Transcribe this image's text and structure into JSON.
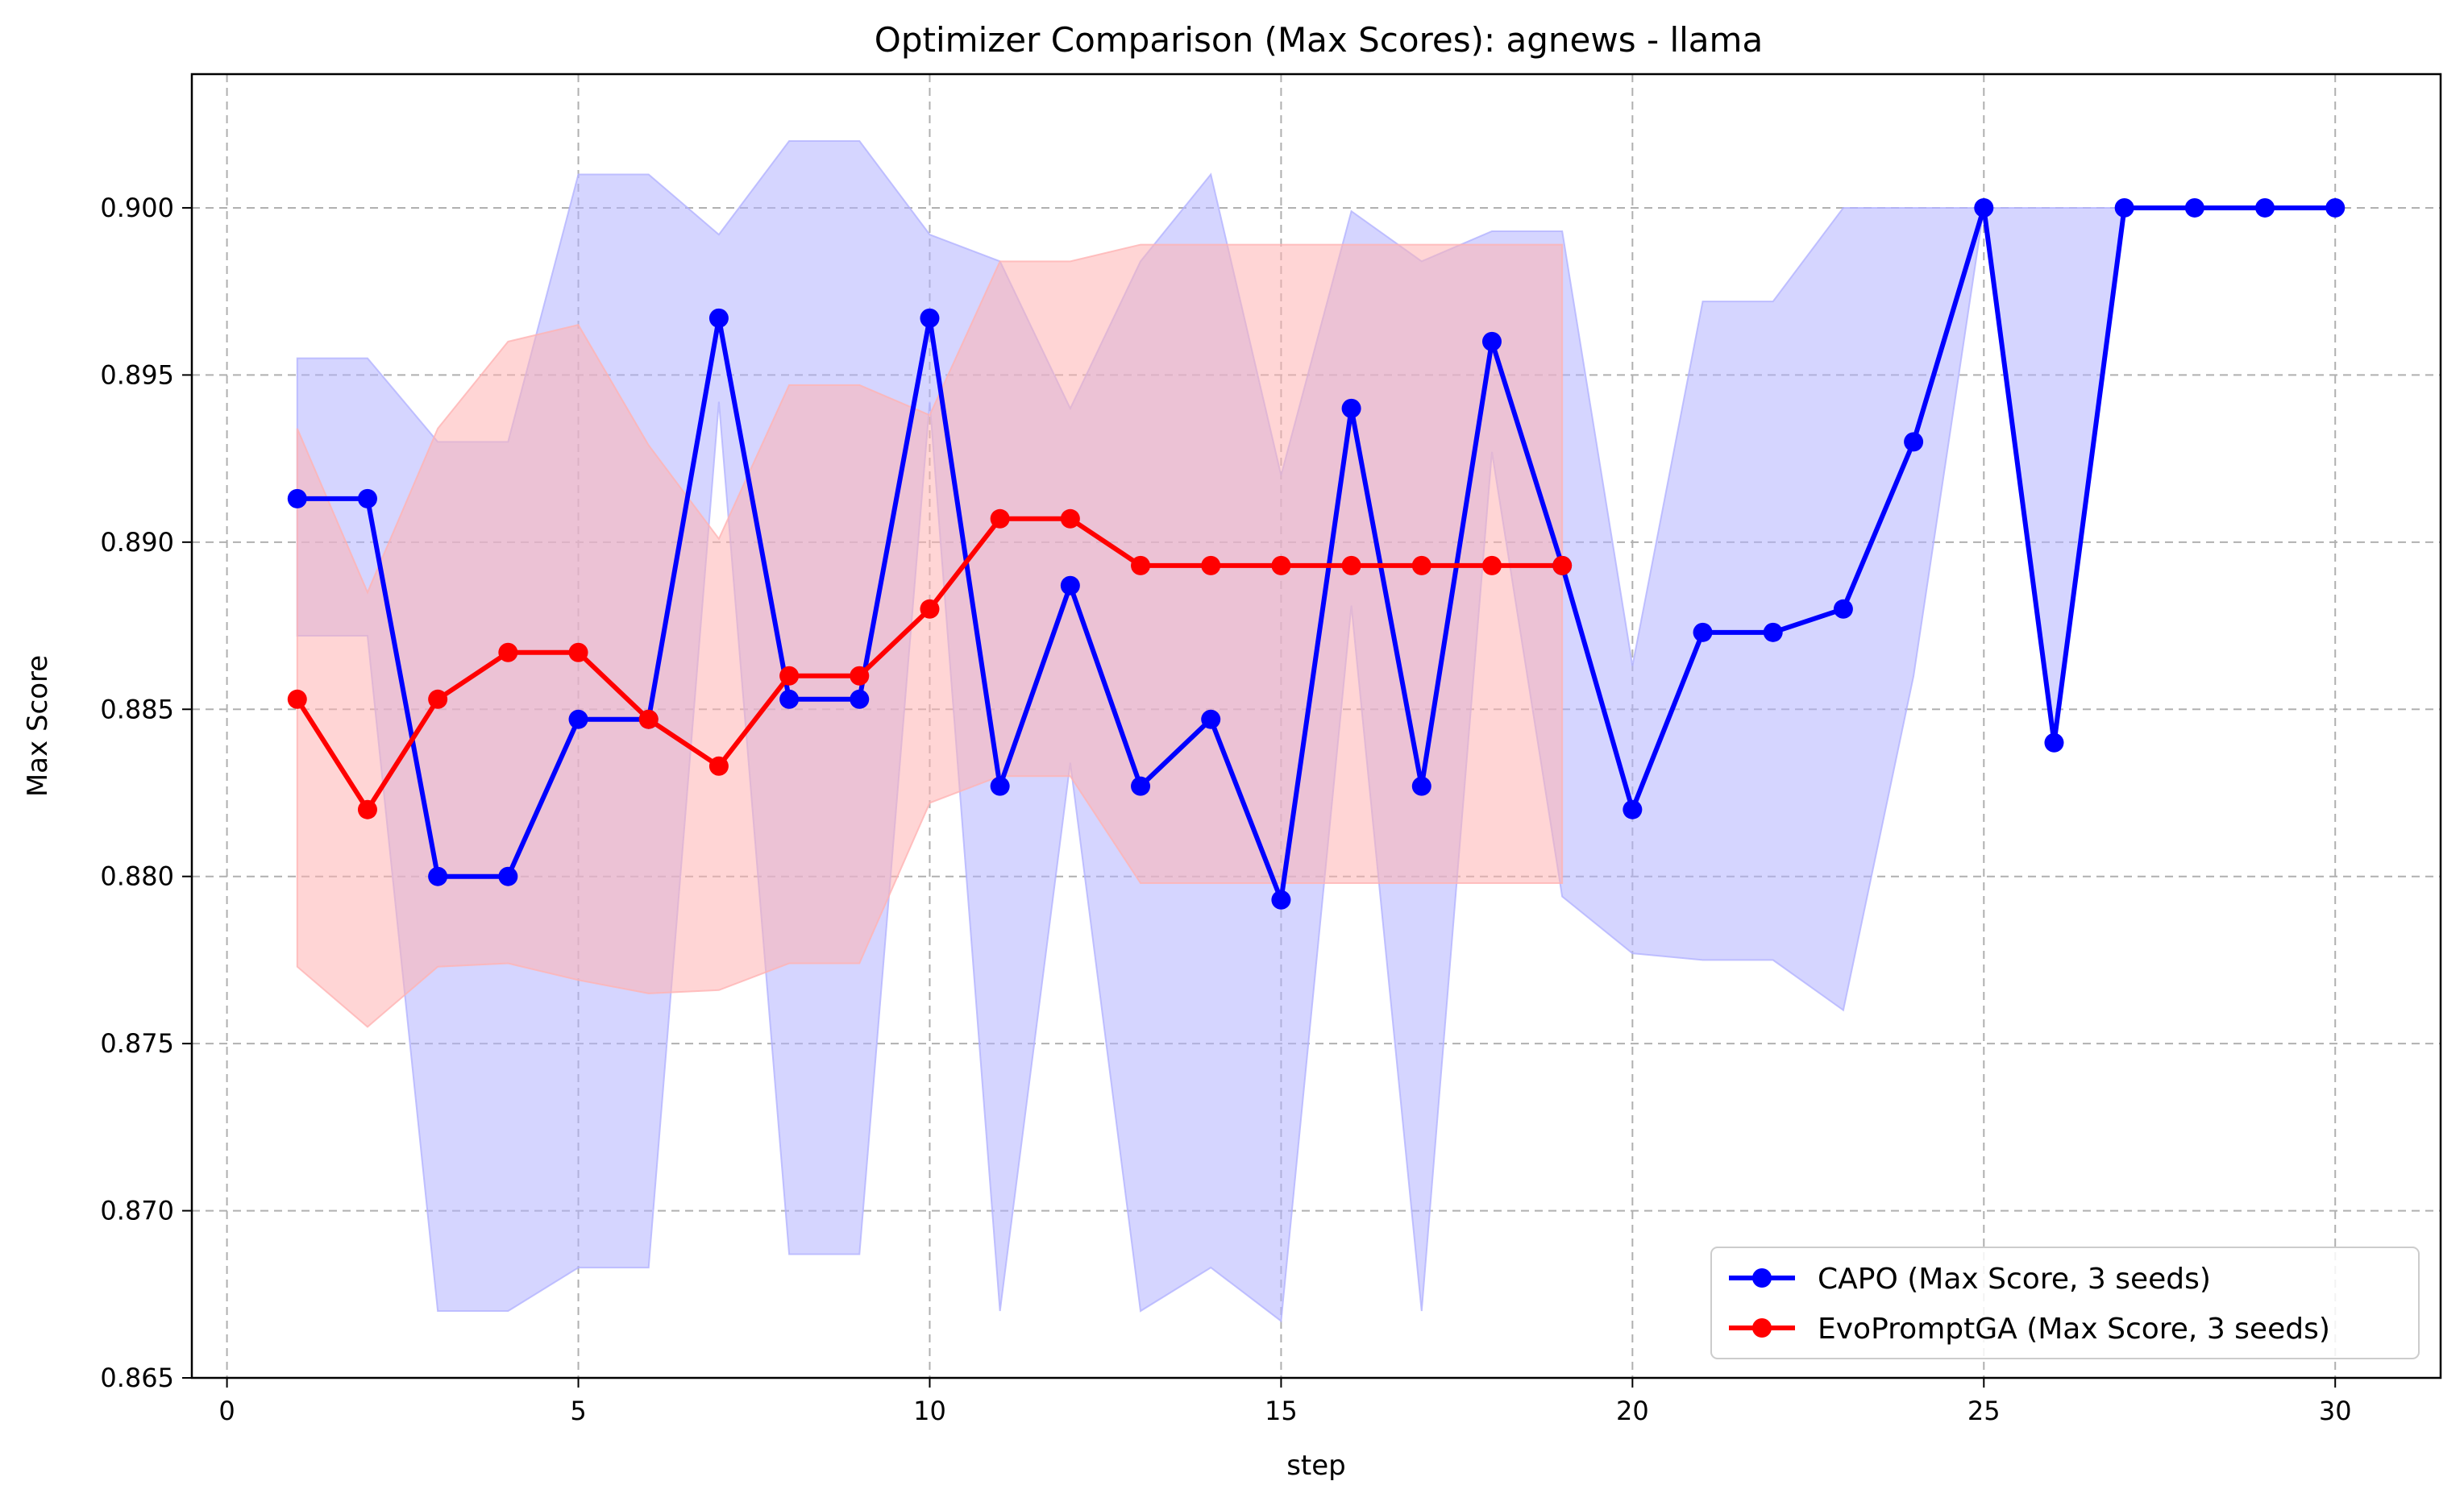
{
  "chart_data": {
    "type": "line",
    "title": "Optimizer Comparison (Max Scores): agnews - llama",
    "xlabel": "step",
    "ylabel": "Max Score",
    "xlim": [
      -0.5,
      31.5
    ],
    "ylim": [
      0.865,
      0.904
    ],
    "xticks": [
      0,
      5,
      10,
      15,
      20,
      25,
      30
    ],
    "yticks": [
      0.865,
      0.87,
      0.875,
      0.88,
      0.885,
      0.89,
      0.895,
      0.9
    ],
    "ytick_labels": [
      "0.865",
      "0.870",
      "0.875",
      "0.880",
      "0.885",
      "0.890",
      "0.895",
      "0.900"
    ],
    "grid": true,
    "legend_position": "bottom-right",
    "series": [
      {
        "name": "CAPO (Max Score, 3 seeds)",
        "color": "#0000ff",
        "band_color": "#b3b3ff",
        "x": [
          1,
          2,
          3,
          4,
          5,
          6,
          7,
          8,
          9,
          10,
          11,
          12,
          13,
          14,
          15,
          16,
          17,
          18,
          19,
          20,
          21,
          22,
          23,
          24,
          25,
          26,
          27,
          28,
          29,
          30
        ],
        "values": [
          0.8913,
          0.8913,
          0.88,
          0.88,
          0.8847,
          0.8847,
          0.8967,
          0.8853,
          0.8853,
          0.8967,
          0.8827,
          0.8887,
          0.8827,
          0.8847,
          0.8793,
          0.894,
          0.8827,
          0.896,
          0.8893,
          0.882,
          0.8873,
          0.8873,
          0.888,
          0.893,
          0.9,
          0.884,
          0.9,
          0.9,
          0.9,
          0.9
        ],
        "upper": [
          0.8955,
          0.8955,
          0.893,
          0.893,
          0.901,
          0.901,
          0.8992,
          0.902,
          0.902,
          0.8992,
          0.8984,
          0.894,
          0.8984,
          0.901,
          0.892,
          0.8999,
          0.8984,
          0.8993,
          0.8993,
          0.8863,
          0.8972,
          0.8972,
          0.9,
          0.9,
          0.9,
          0.9,
          0.9,
          0.9,
          0.9,
          0.9
        ],
        "lower": [
          0.8872,
          0.8872,
          0.867,
          0.867,
          0.8683,
          0.8683,
          0.8942,
          0.8687,
          0.8687,
          0.8942,
          0.867,
          0.8834,
          0.867,
          0.8683,
          0.8667,
          0.8881,
          0.867,
          0.8927,
          0.8794,
          0.8777,
          0.8775,
          0.8775,
          0.876,
          0.886,
          0.9,
          0.884,
          0.9,
          0.9,
          0.9,
          0.9
        ]
      },
      {
        "name": "EvoPromptGA (Max Score, 3 seeds)",
        "color": "#ff0000",
        "band_color": "#ffb3b3",
        "x": [
          1,
          2,
          3,
          4,
          5,
          6,
          7,
          8,
          9,
          10,
          11,
          12,
          13,
          14,
          15,
          16,
          17,
          18,
          19
        ],
        "values": [
          0.8853,
          0.882,
          0.8853,
          0.8867,
          0.8867,
          0.8847,
          0.8833,
          0.886,
          0.886,
          0.888,
          0.8907,
          0.8907,
          0.8893,
          0.8893,
          0.8893,
          0.8893,
          0.8893,
          0.8893,
          0.8893
        ],
        "upper": [
          0.8934,
          0.8885,
          0.8934,
          0.896,
          0.8965,
          0.8929,
          0.8901,
          0.8947,
          0.8947,
          0.8938,
          0.8984,
          0.8984,
          0.8989,
          0.8989,
          0.8989,
          0.8989,
          0.8989,
          0.8989,
          0.8989
        ],
        "lower": [
          0.8773,
          0.8755,
          0.8773,
          0.8774,
          0.8769,
          0.8765,
          0.8766,
          0.8774,
          0.8774,
          0.8822,
          0.883,
          0.883,
          0.8798,
          0.8798,
          0.8798,
          0.8798,
          0.8798,
          0.8798,
          0.8798
        ]
      }
    ]
  }
}
